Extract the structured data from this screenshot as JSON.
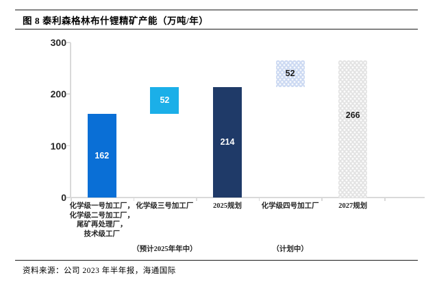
{
  "panel": {
    "title": "图 8 泰利森格林布什锂精矿产能（万吨/年）",
    "source": "资料来源：公司 2023 年半年报，海通国际"
  },
  "colors": {
    "bar_blue": "#0a6fd6",
    "bar_cyan": "#1bafe8",
    "bar_navy": "#1f3a68",
    "bar_lightblue_pattern": "#ccd9f2",
    "bar_gray_pattern": "#e3e3e3",
    "axis_line": "#d9d9d9",
    "text": "#262626"
  },
  "chart_data": {
    "type": "bar",
    "subtype": "column chart with floating (waterfall-style) increment bars",
    "title": "图 8 泰利森格林布什锂精矿产能（万吨/年）",
    "unit": "万吨/年",
    "ylim": [
      0,
      300
    ],
    "yticks": [
      0,
      100,
      200,
      300
    ],
    "grid": false,
    "legend_position": "none",
    "categories": [
      "化学级一号加工厂，化学级二号加工厂，尾矿再处理厂，技术级工厂",
      "化学级三号加工厂（预计2025年年中）",
      "2025规划",
      "化学级四号加工厂（计划中）",
      "2027规划"
    ],
    "bars": [
      {
        "category_lines": [
          "化学级一号加工厂，",
          "化学级二号加工厂，",
          "尾矿再处理厂，",
          "技术级工厂"
        ],
        "note": "",
        "base": 0,
        "value": 162,
        "label": "162",
        "style": "blue",
        "label_style": "white",
        "label_pos": 0.5
      },
      {
        "category_lines": [
          "化学级三号加工厂"
        ],
        "note": "（预计2025年年中）",
        "base": 162,
        "value": 52,
        "label": "52",
        "style": "cyan",
        "label_style": "white",
        "label_pos": 0.5
      },
      {
        "category_lines": [
          "2025规划"
        ],
        "note": "",
        "base": 0,
        "value": 214,
        "label": "214",
        "style": "navy",
        "label_style": "white",
        "label_pos": 0.5
      },
      {
        "category_lines": [
          "化学级四号加工厂"
        ],
        "note": "（计划中）",
        "base": 214,
        "value": 52,
        "label": "52",
        "style": "lightblue",
        "label_style": "dark",
        "label_pos": 0.5
      },
      {
        "category_lines": [
          "2027规划"
        ],
        "note": "",
        "base": 0,
        "value": 266,
        "label": "266",
        "style": "gray",
        "label_style": "dark",
        "label_pos": 0.4
      }
    ]
  }
}
